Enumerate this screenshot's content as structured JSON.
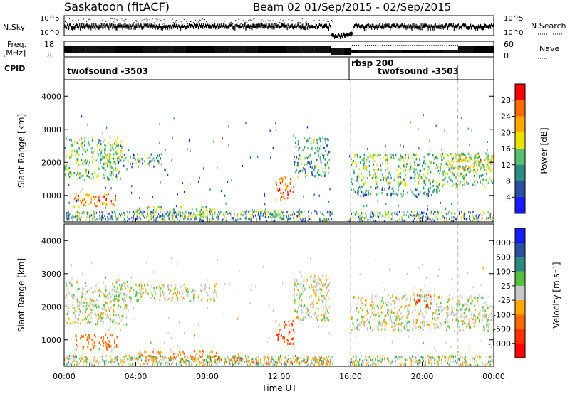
{
  "header": {
    "station": "Saskatoon (fitACF)",
    "beam_info": "Beam 02  01/Sep/2015 - 02/Sep/2015"
  },
  "top_strips": {
    "nsky_label": "N.Sky",
    "nsky_ticks": [
      "10^5",
      "10^0"
    ],
    "nsearch_ticks": [
      "10^5",
      "10^0"
    ],
    "nsearch_label": "N.Search",
    "freq_label": "Freq.",
    "freq_unit": "[MHz]",
    "freq_ticks": [
      "18",
      "8"
    ],
    "nave_ticks": [
      "60",
      "0"
    ],
    "nave_label": "Nave",
    "cpid_label": "CPID",
    "cpid_segments": [
      {
        "name": "twofsound -3503",
        "start": 0,
        "end": 16
      },
      {
        "name": "rbsp 200",
        "start": 16,
        "end": 22
      },
      {
        "name": "twofsound -3503",
        "start": 16,
        "end": 22
      }
    ]
  },
  "chart_data": [
    {
      "type": "heatmap",
      "panel": "power",
      "ylabel": "Slant Range [km]",
      "xlabel": "",
      "xlim": [
        0,
        24
      ],
      "ylim": [
        200,
        4500
      ],
      "yticks": [
        1000,
        2000,
        3000,
        4000
      ],
      "colorbar": {
        "label": "Power [dB]",
        "ticks": [
          "28",
          "24",
          "20",
          "16",
          "12",
          "8",
          "4"
        ],
        "colors": [
          "#ff0000",
          "#ff6a00",
          "#ffa800",
          "#e8e400",
          "#58c070",
          "#2c8c84",
          "#2a4ea0",
          "#1a1aff"
        ]
      },
      "echo_regions": [
        {
          "t0": 0.0,
          "t1": 3.2,
          "r0": 1500,
          "r1": 2800,
          "power": 14
        },
        {
          "t0": 0.5,
          "t1": 3.0,
          "r0": 700,
          "r1": 1100,
          "power": 24
        },
        {
          "t0": 2.0,
          "t1": 5.5,
          "r0": 1900,
          "r1": 2300,
          "power": 12
        },
        {
          "t0": 4.0,
          "t1": 8.5,
          "r0": 400,
          "r1": 700,
          "power": 16
        },
        {
          "t0": 10.0,
          "t1": 12.5,
          "r0": 400,
          "r1": 600,
          "power": 14
        },
        {
          "t0": 11.8,
          "t1": 12.8,
          "r0": 900,
          "r1": 1600,
          "power": 26
        },
        {
          "t0": 12.8,
          "t1": 14.8,
          "r0": 1600,
          "r1": 2800,
          "power": 12
        },
        {
          "t0": 16.0,
          "t1": 24.0,
          "r0": 1300,
          "r1": 2300,
          "power": 14
        },
        {
          "t0": 16.0,
          "t1": 21.0,
          "r0": 1000,
          "r1": 1300,
          "power": 10
        },
        {
          "t0": 21.5,
          "t1": 24.0,
          "r0": 1800,
          "r1": 2300,
          "power": 18
        }
      ]
    },
    {
      "type": "heatmap",
      "panel": "velocity",
      "ylabel": "Slant Range [km]",
      "xlabel": "Time UT",
      "xlim": [
        0,
        24
      ],
      "ylim": [
        200,
        4500
      ],
      "yticks": [
        1000,
        2000,
        3000,
        4000
      ],
      "xticks": [
        "00:00",
        "04:00",
        "08:00",
        "12:00",
        "16:00",
        "20:00",
        "00:00"
      ],
      "colorbar": {
        "label": "Velocity [m s⁻¹]",
        "ticks": [
          "1000",
          "500",
          "100",
          "25",
          "-25",
          "-100",
          "-500",
          "-1000"
        ],
        "colors": [
          "#1a1aff",
          "#2a4ea0",
          "#2c8c84",
          "#58c040",
          "#c8c8c8",
          "#ffa800",
          "#ff6a00",
          "#ff3000",
          "#ff0000"
        ]
      },
      "echo_regions": [
        {
          "t0": 0.0,
          "t1": 3.5,
          "r0": 1500,
          "r1": 2800,
          "vel": 0
        },
        {
          "t0": 0.5,
          "t1": 3.0,
          "r0": 700,
          "r1": 1200,
          "vel": -200
        },
        {
          "t0": 3.0,
          "t1": 8.5,
          "r0": 2200,
          "r1": 2700,
          "vel": 0
        },
        {
          "t0": 4.0,
          "t1": 8.5,
          "r0": 400,
          "r1": 700,
          "vel": -100
        },
        {
          "t0": 8.5,
          "t1": 15.0,
          "r0": 300,
          "r1": 500,
          "vel": -150
        },
        {
          "t0": 11.8,
          "t1": 12.8,
          "r0": 900,
          "r1": 1600,
          "vel": -300
        },
        {
          "t0": 12.8,
          "t1": 14.8,
          "r0": 1600,
          "r1": 3000,
          "vel": 0
        },
        {
          "t0": 16.0,
          "t1": 24.0,
          "r0": 1300,
          "r1": 2400,
          "vel": 0
        },
        {
          "t0": 19.5,
          "t1": 20.5,
          "r0": 2000,
          "r1": 2400,
          "vel": -300
        }
      ]
    }
  ]
}
